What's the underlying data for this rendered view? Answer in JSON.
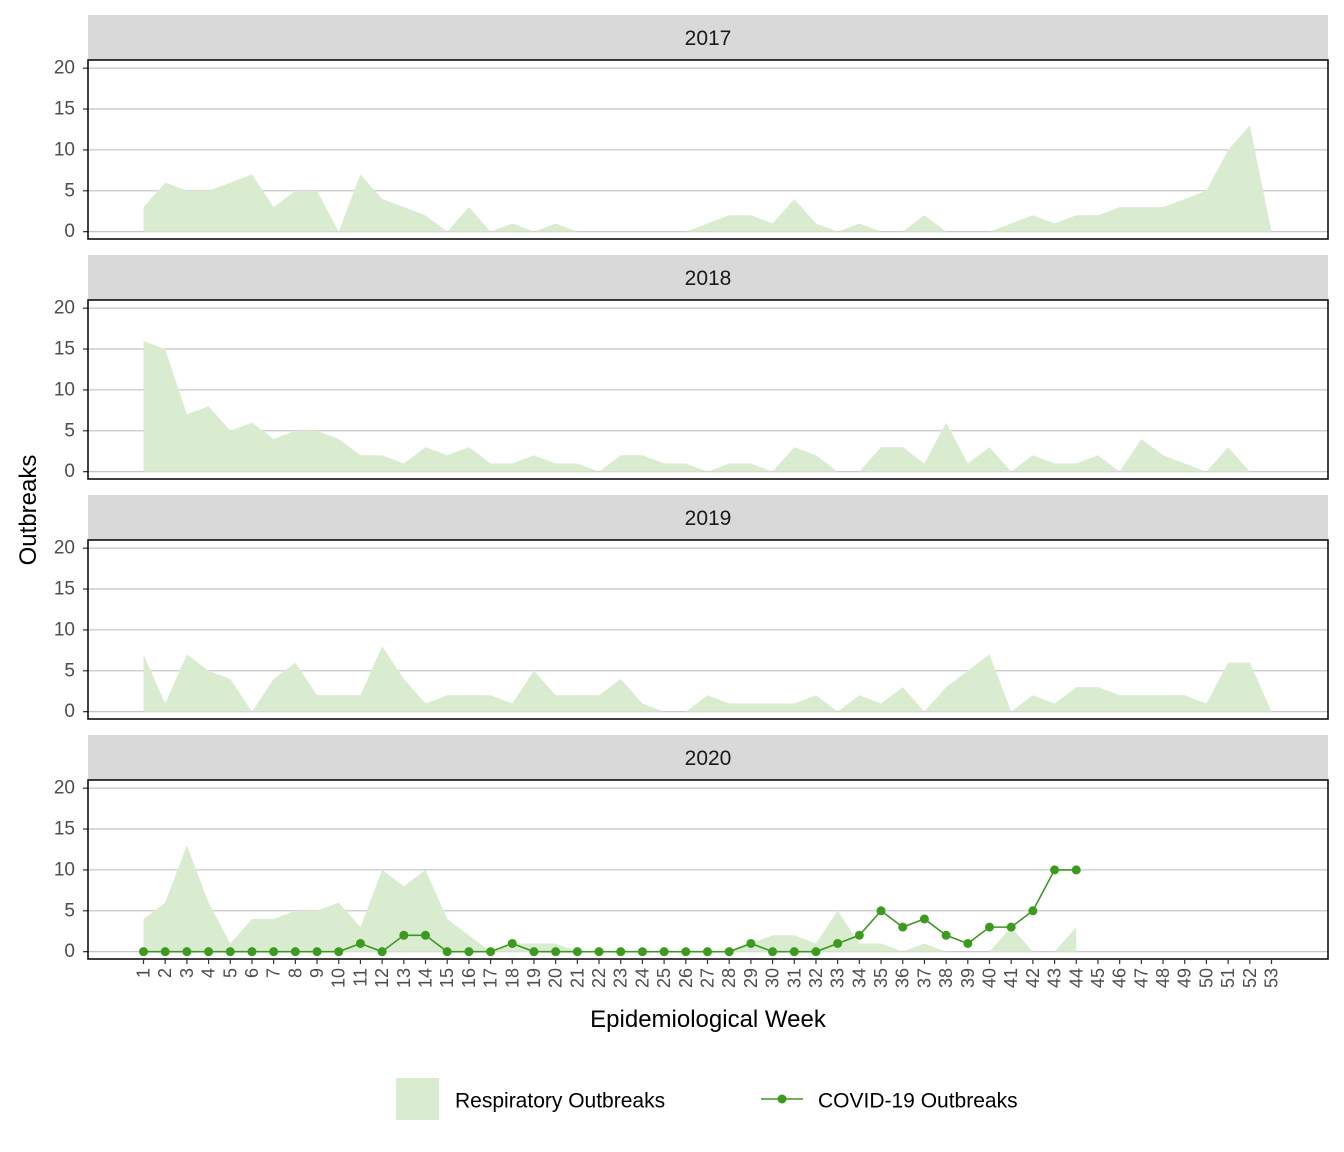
{
  "chart_data": {
    "type": "area",
    "xlabel": "Epidemiological Week",
    "ylabel": "Outbreaks",
    "ylim": [
      -0.9,
      21
    ],
    "yticks": [
      0,
      5,
      10,
      15,
      20
    ],
    "x": [
      1,
      2,
      3,
      4,
      5,
      6,
      7,
      8,
      9,
      10,
      11,
      12,
      13,
      14,
      15,
      16,
      17,
      18,
      19,
      20,
      21,
      22,
      23,
      24,
      25,
      26,
      27,
      28,
      29,
      30,
      31,
      32,
      33,
      34,
      35,
      36,
      37,
      38,
      39,
      40,
      41,
      42,
      43,
      44,
      45,
      46,
      47,
      48,
      49,
      50,
      51,
      52,
      53
    ],
    "grid": true,
    "legend_position": "bottom",
    "colors": {
      "respiratory": "#d9ecd0",
      "covid": "#3c9a1e",
      "strip": "#d9d9d9",
      "grid": "#c8c8c8"
    },
    "legend": [
      {
        "key": "respiratory",
        "label": "Respiratory Outbreaks"
      },
      {
        "key": "covid",
        "label": "COVID-19 Outbreaks"
      }
    ],
    "panels": [
      {
        "title": "2017",
        "respiratory": [
          3,
          6,
          5,
          5,
          6,
          7,
          3,
          5,
          5,
          0,
          7,
          4,
          3,
          2,
          0,
          3,
          0,
          1,
          0,
          1,
          0,
          0,
          0,
          0,
          0,
          0,
          1,
          2,
          2,
          1,
          4,
          1,
          0,
          1,
          0,
          0,
          2,
          0,
          0,
          0,
          1,
          2,
          1,
          2,
          2,
          3,
          3,
          3,
          4,
          5,
          10,
          13,
          0
        ]
      },
      {
        "title": "2018",
        "respiratory": [
          16,
          15,
          7,
          8,
          5,
          6,
          4,
          5,
          5,
          4,
          2,
          2,
          1,
          3,
          2,
          3,
          1,
          1,
          2,
          1,
          1,
          0,
          2,
          2,
          1,
          1,
          0,
          1,
          1,
          0,
          3,
          2,
          0,
          0,
          3,
          3,
          1,
          6,
          1,
          3,
          0,
          2,
          1,
          1,
          2,
          0,
          4,
          2,
          1,
          0,
          3,
          0,
          0
        ]
      },
      {
        "title": "2019",
        "respiratory": [
          7,
          1,
          7,
          5,
          4,
          0,
          4,
          6,
          2,
          2,
          2,
          8,
          4,
          1,
          2,
          2,
          2,
          1,
          5,
          2,
          2,
          2,
          4,
          1,
          0,
          0,
          2,
          1,
          1,
          1,
          1,
          2,
          0,
          2,
          1,
          3,
          0,
          3,
          5,
          7,
          0,
          2,
          1,
          3,
          3,
          2,
          2,
          2,
          2,
          1,
          6,
          6,
          0
        ]
      },
      {
        "title": "2020",
        "respiratory": [
          4,
          6,
          13,
          6,
          1,
          4,
          4,
          5,
          5,
          6,
          3,
          10,
          8,
          10,
          4,
          2,
          0,
          1,
          1,
          1,
          0,
          0,
          0,
          0,
          0,
          0,
          0,
          0,
          1,
          2,
          2,
          1,
          5,
          1,
          1,
          0,
          1,
          0,
          0,
          0,
          3,
          0,
          0,
          3,
          null,
          null,
          null,
          null,
          null,
          null,
          null,
          null,
          null
        ],
        "covid": [
          0,
          0,
          0,
          0,
          0,
          0,
          0,
          0,
          0,
          0,
          1,
          0,
          2,
          2,
          0,
          0,
          0,
          1,
          0,
          0,
          0,
          0,
          0,
          0,
          0,
          0,
          0,
          0,
          1,
          0,
          0,
          0,
          1,
          2,
          5,
          3,
          4,
          2,
          1,
          3,
          3,
          5,
          10,
          10,
          null,
          null,
          null,
          null,
          null,
          null,
          null,
          null,
          null
        ]
      }
    ]
  }
}
